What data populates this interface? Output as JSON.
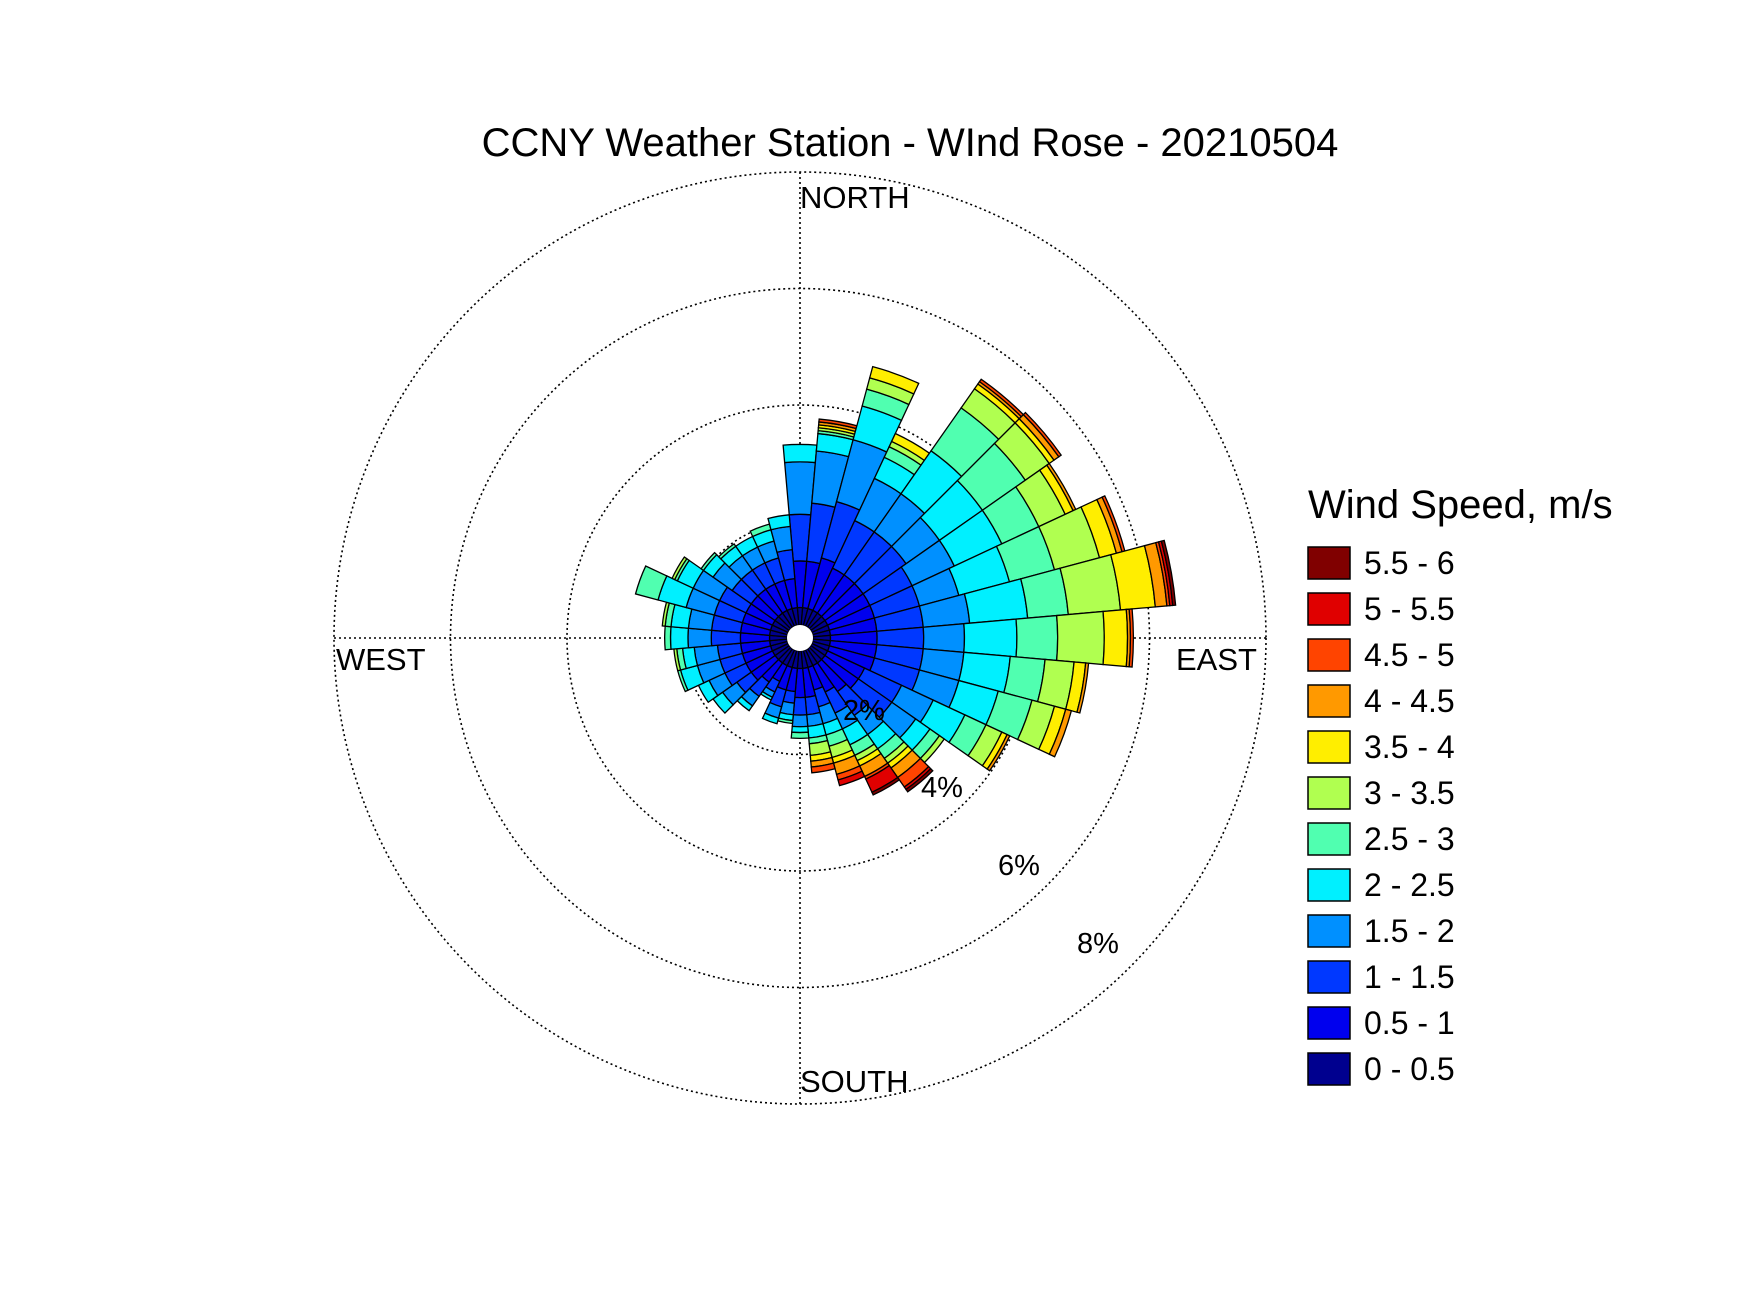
{
  "chart_data": {
    "type": "windrose",
    "title": "CCNY Weather Station - WInd Rose - 20210504",
    "direction_labels": {
      "north": "NORTH",
      "south": "SOUTH",
      "east": "EAST",
      "west": "WEST"
    },
    "radial_ticks": [
      "2%",
      "4%",
      "6%",
      "8%"
    ],
    "radial_tick_values": [
      2,
      4,
      6,
      8
    ],
    "rmax": 8,
    "legend_title": "Wind Speed, m/s",
    "legend_placement": "right",
    "bins": [
      {
        "label": "0 - 0.5",
        "color": "#00008f"
      },
      {
        "label": "0.5 - 1",
        "color": "#0000ee"
      },
      {
        "label": "1 - 1.5",
        "color": "#0038ff"
      },
      {
        "label": "1.5 - 2",
        "color": "#0090ff"
      },
      {
        "label": "2 - 2.5",
        "color": "#00f0ff"
      },
      {
        "label": "2.5 - 3",
        "color": "#50ffb0"
      },
      {
        "label": "3 - 3.5",
        "color": "#b0ff50"
      },
      {
        "label": "3.5 - 4",
        "color": "#ffee00"
      },
      {
        "label": "4 - 4.5",
        "color": "#ff9900"
      },
      {
        "label": "4.5 - 5",
        "color": "#ff4400"
      },
      {
        "label": "5 - 5.5",
        "color": "#e00000"
      },
      {
        "label": "5.5 - 6",
        "color": "#800000"
      }
    ],
    "sector_width_deg": 10,
    "sectors": [
      {
        "dir": 0,
        "values": [
          0.3,
          0.8,
          0.8,
          0.9,
          0.3
        ]
      },
      {
        "dir": 10,
        "values": [
          0.3,
          0.8,
          1.0,
          0.9,
          0.3,
          0.05,
          0.05,
          0.05,
          0.05,
          0.05
        ]
      },
      {
        "dir": 20,
        "values": [
          0.3,
          0.9,
          1.0,
          1.1,
          0.6,
          0.3,
          0.2,
          0.2
        ]
      },
      {
        "dir": 30,
        "values": [
          0.3,
          0.8,
          0.9,
          0.8,
          0.4,
          0.2,
          0.1,
          0.15
        ]
      },
      {
        "dir": 40,
        "values": [
          0.3,
          0.8,
          0.9,
          0.8,
          0.9,
          0.9,
          0.4,
          0.1,
          0.05,
          0.05
        ]
      },
      {
        "dir": 50,
        "values": [
          0.3,
          0.8,
          0.9,
          0.7,
          0.9,
          0.9,
          0.5,
          0.1,
          0.1,
          0.05
        ]
      },
      {
        "dir": 60,
        "values": [
          0.3,
          0.8,
          0.8,
          0.8,
          0.9,
          0.7,
          0.5,
          0.15,
          0.05
        ]
      },
      {
        "dir": 70,
        "values": [
          0.3,
          0.8,
          0.8,
          0.7,
          0.9,
          0.8,
          0.8,
          0.3,
          0.1,
          0.05
        ]
      },
      {
        "dir": 80,
        "values": [
          0.3,
          0.8,
          0.8,
          0.8,
          1.0,
          0.7,
          0.9,
          0.6,
          0.2,
          0.05,
          0.05,
          0.05
        ]
      },
      {
        "dir": 90,
        "values": [
          0.3,
          0.8,
          0.8,
          0.7,
          0.9,
          0.7,
          0.8,
          0.4,
          0.05,
          0.05
        ]
      },
      {
        "dir": 100,
        "values": [
          0.3,
          0.8,
          0.8,
          0.7,
          0.8,
          0.6,
          0.5,
          0.2,
          0.05
        ]
      },
      {
        "dir": 110,
        "values": [
          0.3,
          0.8,
          0.8,
          0.7,
          0.7,
          0.6,
          0.4,
          0.2,
          0.1
        ]
      },
      {
        "dir": 120,
        "values": [
          0.3,
          0.7,
          0.7,
          0.6,
          0.6,
          0.4,
          0.3,
          0.1,
          0.05
        ]
      },
      {
        "dir": 130,
        "values": [
          0.3,
          0.7,
          0.7,
          0.5,
          0.3,
          0.2,
          0.1
        ]
      },
      {
        "dir": 140,
        "values": [
          0.3,
          0.6,
          0.5,
          0.4,
          0.3,
          0.2,
          0.1,
          0.1,
          0.2,
          0.2,
          0.05,
          0.05
        ]
      },
      {
        "dir": 150,
        "values": [
          0.3,
          0.5,
          0.4,
          0.3,
          0.3,
          0.2,
          0.1,
          0.1,
          0.2,
          0.05,
          0.25,
          0.05
        ]
      },
      {
        "dir": 160,
        "values": [
          0.3,
          0.4,
          0.3,
          0.3,
          0.2,
          0.2,
          0.2,
          0.1,
          0.2,
          0.1,
          0.1
        ]
      },
      {
        "dir": 170,
        "values": [
          0.3,
          0.5,
          0.3,
          0.2,
          0.2,
          0.1,
          0.2,
          0.1,
          0.1,
          0.1
        ]
      },
      {
        "dir": 180,
        "values": [
          0.3,
          0.5,
          0.3,
          0.2,
          0.1,
          0.1
        ]
      },
      {
        "dir": 190,
        "values": [
          0.3,
          0.4,
          0.2,
          0.2,
          0.1,
          0.05
        ]
      },
      {
        "dir": 200,
        "values": [
          0.3,
          0.4,
          0.3,
          0.2,
          0.1
        ]
      },
      {
        "dir": 210,
        "values": [
          0.3,
          0.3,
          0.2,
          0.1,
          0.05
        ]
      },
      {
        "dir": 220,
        "values": [
          0.3,
          0.4,
          0.3,
          0.2,
          0.1
        ]
      },
      {
        "dir": 230,
        "values": [
          0.3,
          0.5,
          0.3,
          0.3,
          0.2
        ]
      },
      {
        "dir": 240,
        "values": [
          0.3,
          0.5,
          0.4,
          0.3,
          0.2
        ]
      },
      {
        "dir": 250,
        "values": [
          0.3,
          0.5,
          0.4,
          0.4,
          0.3,
          0.05
        ]
      },
      {
        "dir": 260,
        "values": [
          0.3,
          0.5,
          0.4,
          0.4,
          0.2,
          0.1,
          0.05
        ]
      },
      {
        "dir": 270,
        "values": [
          0.3,
          0.5,
          0.5,
          0.4,
          0.3,
          0.1
        ]
      },
      {
        "dir": 280,
        "values": [
          0.3,
          0.5,
          0.5,
          0.4,
          0.3,
          0.1,
          0.05
        ]
      },
      {
        "dir": 290,
        "values": [
          0.3,
          0.5,
          0.5,
          0.5,
          0.5,
          0.4
        ]
      },
      {
        "dir": 300,
        "values": [
          0.3,
          0.5,
          0.5,
          0.5,
          0.3,
          0.05,
          0.05
        ]
      },
      {
        "dir": 310,
        "values": [
          0.3,
          0.5,
          0.4,
          0.4,
          0.2,
          0.05
        ]
      },
      {
        "dir": 320,
        "values": [
          0.3,
          0.5,
          0.4,
          0.3,
          0.2,
          0.05
        ]
      },
      {
        "dir": 330,
        "values": [
          0.3,
          0.5,
          0.4,
          0.3,
          0.2
        ]
      },
      {
        "dir": 340,
        "values": [
          0.3,
          0.5,
          0.4,
          0.3,
          0.2,
          0.1
        ]
      },
      {
        "dir": 350,
        "values": [
          0.3,
          0.5,
          0.5,
          0.4,
          0.2
        ]
      }
    ]
  }
}
